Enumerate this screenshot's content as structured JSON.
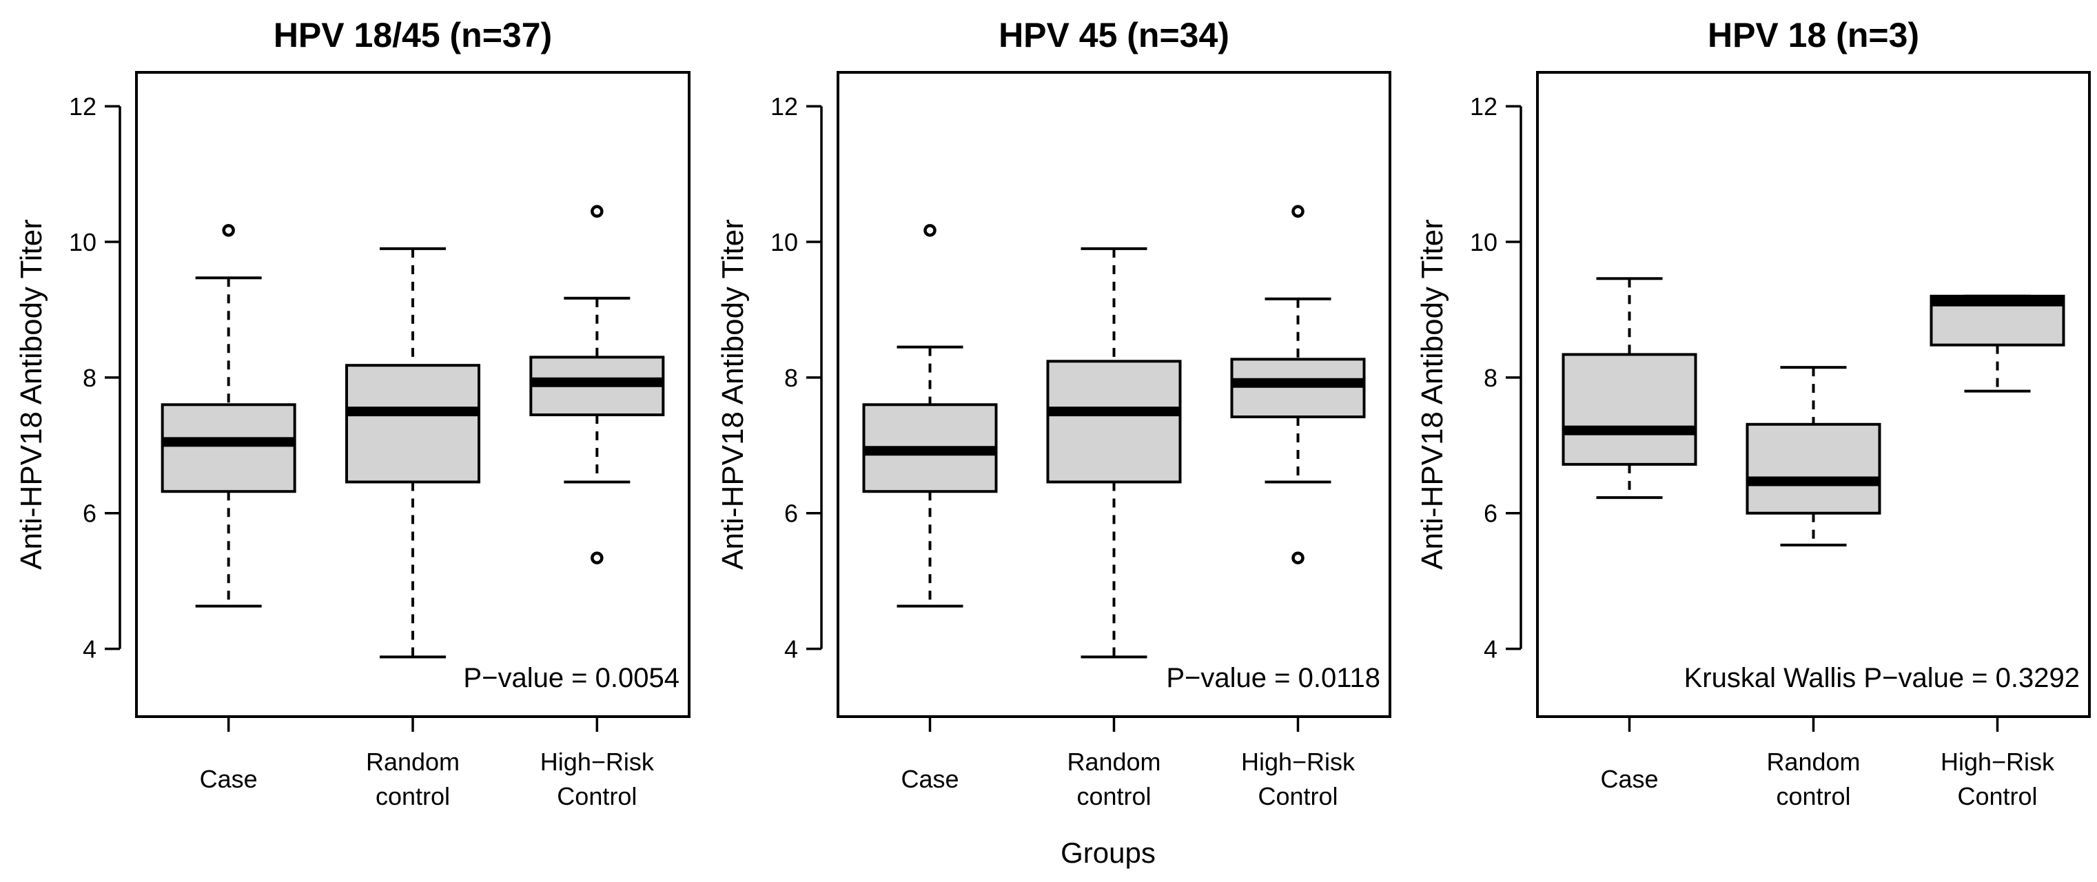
{
  "chart_data": [
    {
      "type": "boxplot",
      "title": "HPV 18/45 (n=37)",
      "ylabel": "Anti-HPV18 Antibody Titer",
      "ylim": [
        3.0,
        12.5
      ],
      "yticks": [
        4,
        6,
        8,
        10,
        12
      ],
      "categories": [
        [
          "Case"
        ],
        [
          "Random",
          "control"
        ],
        [
          "High−Risk",
          "Control"
        ]
      ],
      "boxes": [
        {
          "q1": 6.32,
          "median": 7.05,
          "q3": 7.6,
          "whisker_low": 4.63,
          "whisker_high": 9.47,
          "outliers": [
            10.17
          ]
        },
        {
          "q1": 6.46,
          "median": 7.5,
          "q3": 8.18,
          "whisker_low": 3.88,
          "whisker_high": 9.9,
          "outliers": []
        },
        {
          "q1": 7.45,
          "median": 7.93,
          "q3": 8.3,
          "whisker_low": 6.46,
          "whisker_high": 9.17,
          "outliers": [
            10.45,
            5.34
          ]
        }
      ],
      "annotation": "P−value = 0.0054"
    },
    {
      "type": "boxplot",
      "title": "HPV 45 (n=34)",
      "ylabel": "Anti-HPV18 Antibody Titer",
      "ylim": [
        3.0,
        12.5
      ],
      "yticks": [
        4,
        6,
        8,
        10,
        12
      ],
      "categories": [
        [
          "Case"
        ],
        [
          "Random",
          "control"
        ],
        [
          "High−Risk",
          "Control"
        ]
      ],
      "boxes": [
        {
          "q1": 6.32,
          "median": 6.92,
          "q3": 7.6,
          "whisker_low": 4.63,
          "whisker_high": 8.45,
          "outliers": [
            10.17
          ]
        },
        {
          "q1": 6.46,
          "median": 7.5,
          "q3": 8.24,
          "whisker_low": 3.88,
          "whisker_high": 9.9,
          "outliers": []
        },
        {
          "q1": 7.42,
          "median": 7.92,
          "q3": 8.27,
          "whisker_low": 6.46,
          "whisker_high": 9.16,
          "outliers": [
            10.45,
            5.34
          ]
        }
      ],
      "annotation": "P−value = 0.0118"
    },
    {
      "type": "boxplot",
      "title": "HPV 18 (n=3)",
      "ylabel": "Anti-HPV18 Antibody Titer",
      "ylim": [
        3.0,
        12.5
      ],
      "yticks": [
        4,
        6,
        8,
        10,
        12
      ],
      "categories": [
        [
          "Case"
        ],
        [
          "Random",
          "control"
        ],
        [
          "High−Risk",
          "Control"
        ]
      ],
      "boxes": [
        {
          "q1": 6.72,
          "median": 7.22,
          "q3": 8.34,
          "whisker_low": 6.23,
          "whisker_high": 9.46,
          "outliers": []
        },
        {
          "q1": 6.0,
          "median": 6.47,
          "q3": 7.31,
          "whisker_low": 5.53,
          "whisker_high": 8.15,
          "outliers": []
        },
        {
          "q1": 8.48,
          "median": 9.12,
          "q3": 9.2,
          "whisker_low": 7.8,
          "whisker_high": 9.2,
          "outliers": []
        }
      ],
      "annotation": "Kruskal Wallis P−value = 0.3292"
    }
  ],
  "xlabel": "Groups"
}
